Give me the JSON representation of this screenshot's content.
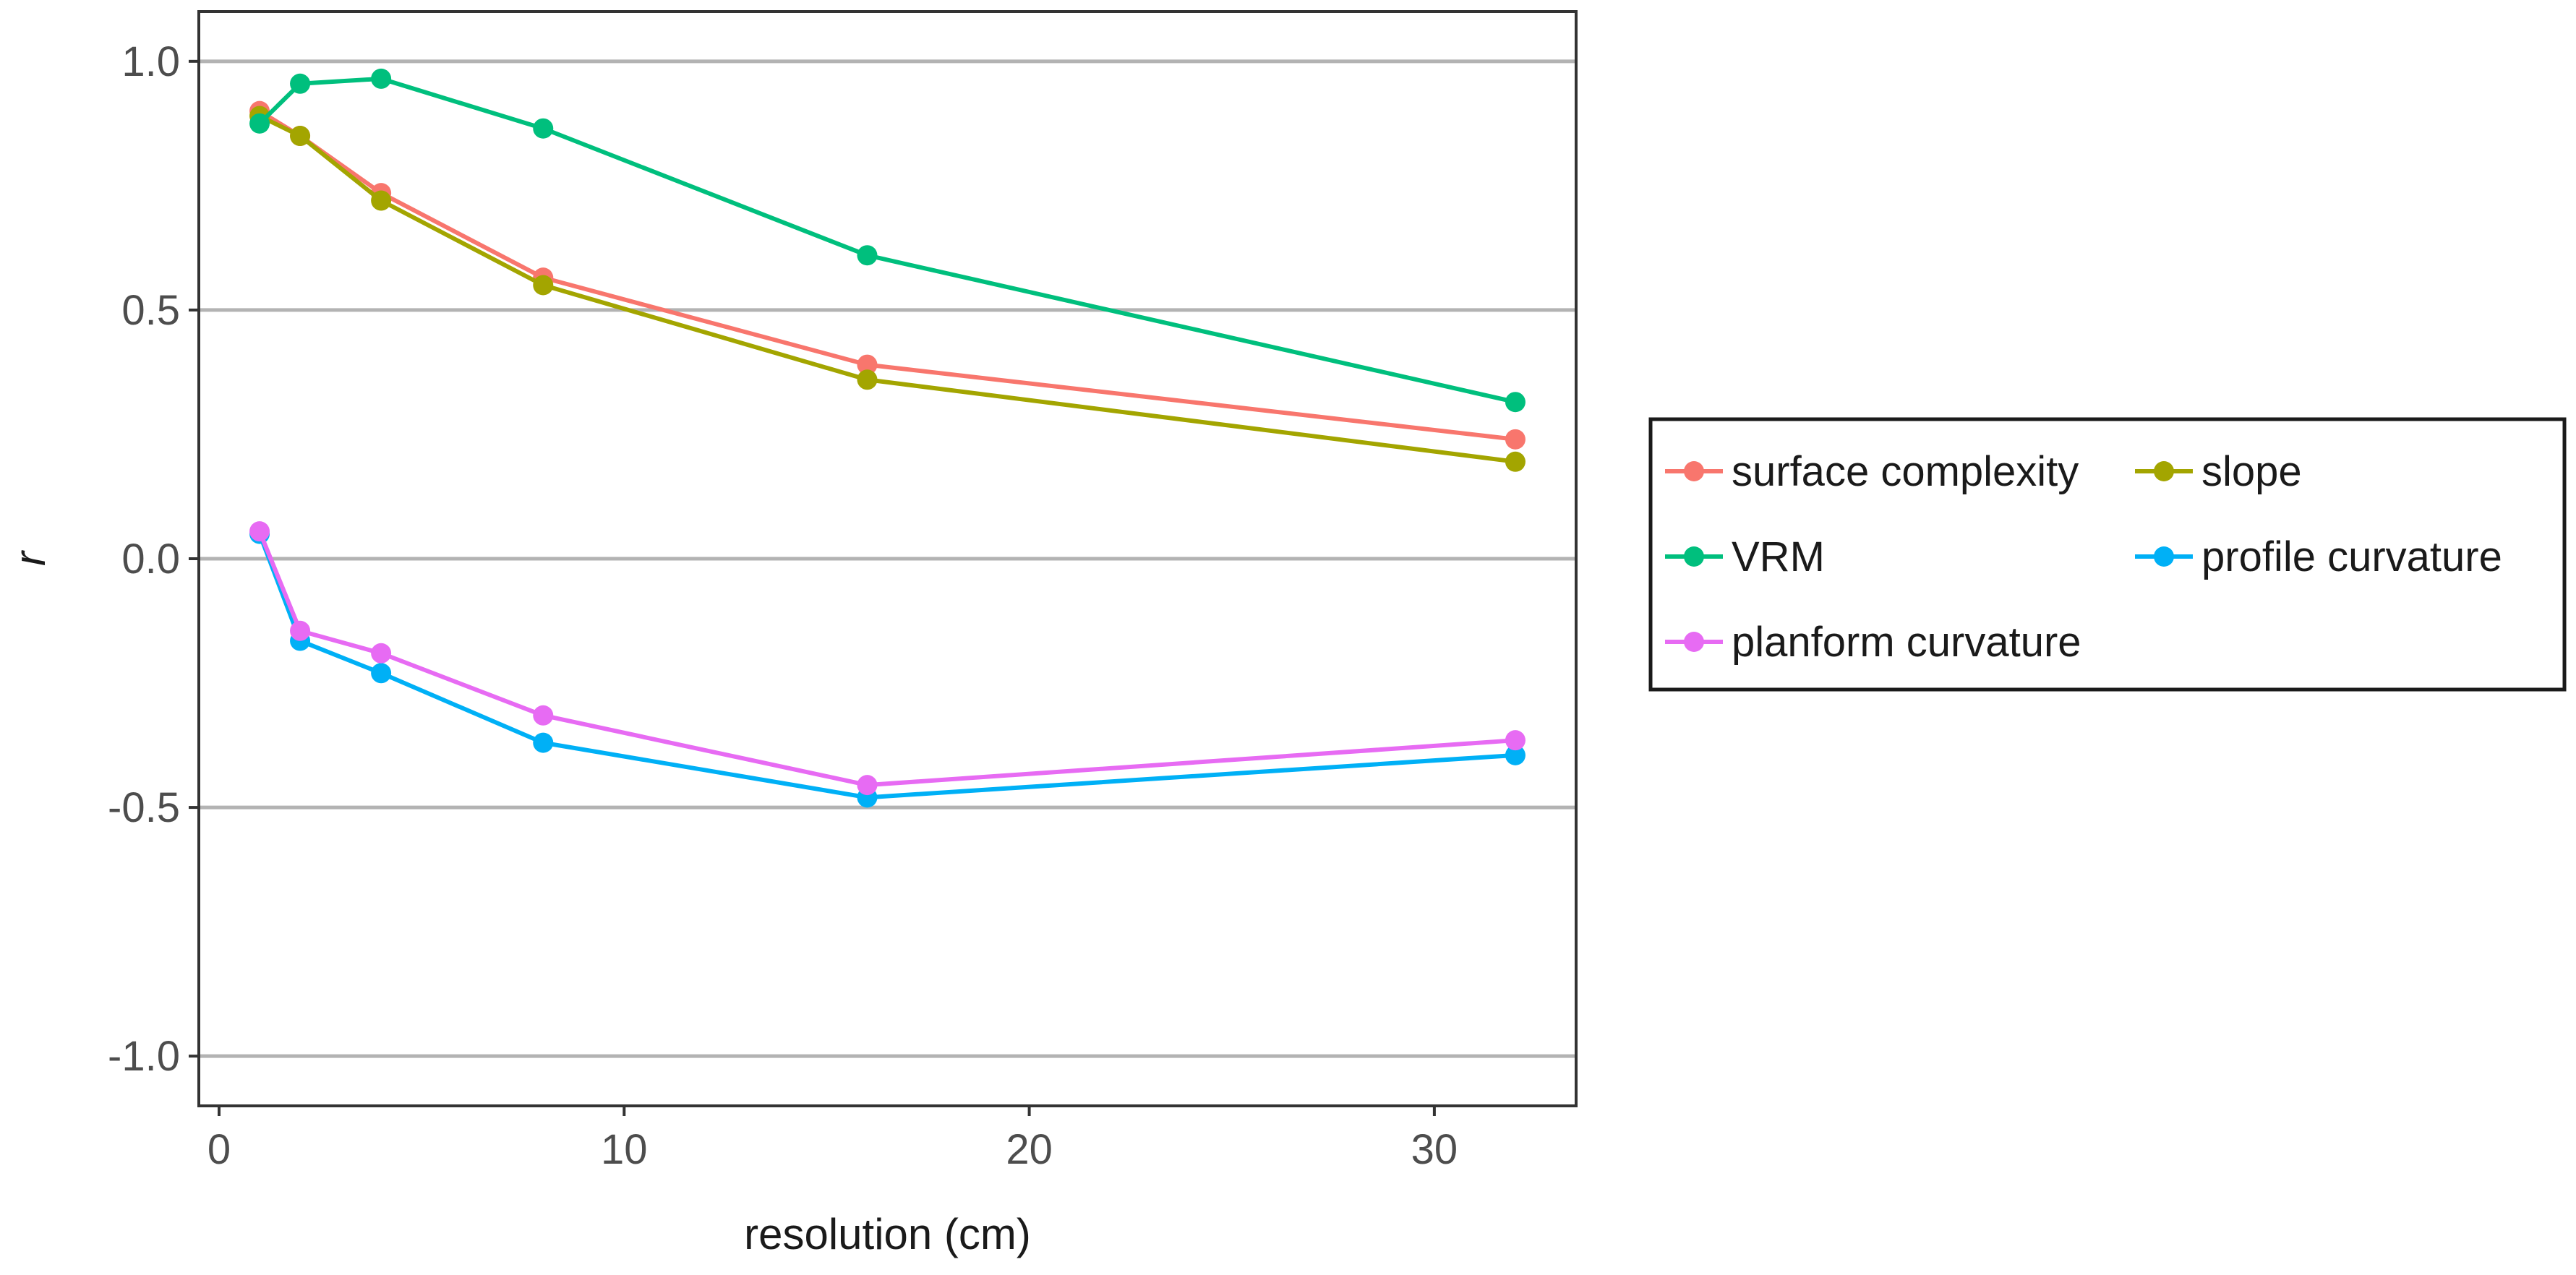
{
  "chart_data": {
    "type": "line",
    "title": "",
    "xlabel": "resolution (cm)",
    "ylabel": "r",
    "xlim": [
      -0.5,
      33.5
    ],
    "ylim": [
      -1.1,
      1.1
    ],
    "x_ticks": [
      0,
      10,
      20,
      30
    ],
    "x_tick_labels": [
      "0",
      "10",
      "20",
      "30"
    ],
    "y_ticks": [
      1.0,
      0.5,
      0.0,
      -0.5,
      -1.0
    ],
    "y_tick_labels": [
      "1.0",
      "0.5",
      "0.0",
      "-0.5",
      "-1.0"
    ],
    "grid": "horizontal major",
    "legend_position": "right",
    "x": [
      1,
      2,
      4,
      8,
      16,
      32
    ],
    "series": [
      {
        "name": "surface complexity",
        "color": "#F8766D",
        "values": [
          0.9,
          0.85,
          0.735,
          0.565,
          0.39,
          0.24
        ]
      },
      {
        "name": "slope",
        "color": "#A3A500",
        "values": [
          0.89,
          0.85,
          0.72,
          0.55,
          0.36,
          0.195
        ]
      },
      {
        "name": "VRM",
        "color": "#00BF7D",
        "values": [
          0.875,
          0.955,
          0.965,
          0.865,
          0.61,
          0.315
        ]
      },
      {
        "name": "profile curvature",
        "color": "#00B0F6",
        "values": [
          0.05,
          -0.165,
          -0.23,
          -0.37,
          -0.48,
          -0.395
        ]
      },
      {
        "name": "planform curvature",
        "color": "#E76BF3",
        "values": [
          0.055,
          -0.145,
          -0.19,
          -0.315,
          -0.455,
          -0.365
        ]
      }
    ]
  }
}
